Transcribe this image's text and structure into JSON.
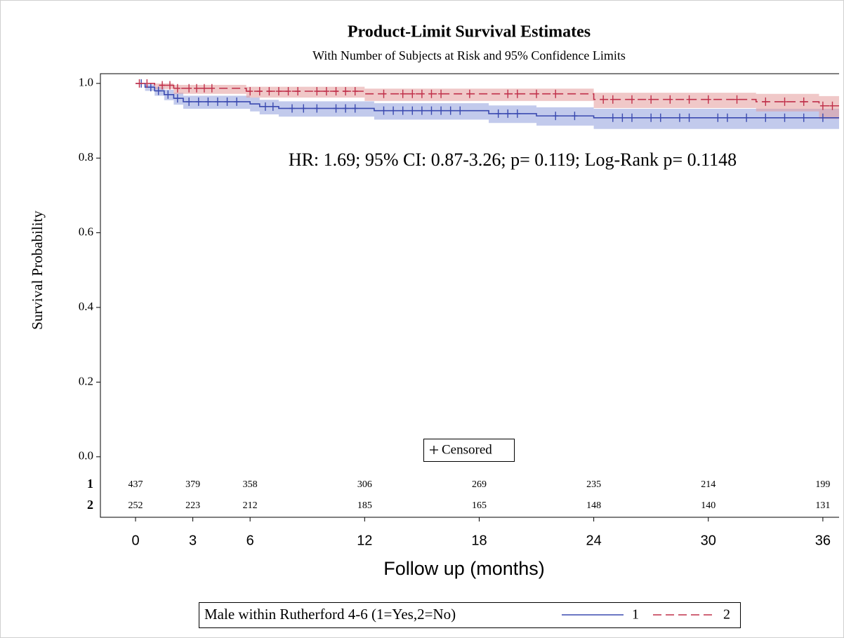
{
  "chart_data": {
    "type": "step",
    "title": "Product-Limit Survival Estimates",
    "subtitle": "With Number of Subjects at Risk and 95% Confidence Limits",
    "annotation": "HR: 1.69; 95% CI: 0.87-3.26; p= 0.119; Log-Rank p= 0.1148",
    "x_label": "Follow up (months)",
    "y_label": "Survival Probability",
    "xlim": [
      -1.84,
      36.85
    ],
    "ylim": [
      -0.162,
      1.026
    ],
    "xticks": [
      0,
      3,
      6,
      12,
      18,
      24,
      30,
      36
    ],
    "yticks": [
      {
        "value": 0,
        "label": "0.0"
      },
      0.2,
      0.4,
      0.6,
      0.8,
      {
        "value": 1,
        "label": "1.0"
      }
    ],
    "series": [
      {
        "name": "1",
        "color": "#3b4ab0",
        "band_color": "#8f9fdc",
        "dash": "solid",
        "x": [
          0,
          0.5,
          1,
          1.5,
          2,
          2.5,
          6,
          6.5,
          7.5,
          12.5,
          18.5,
          21,
          24
        ],
        "values": [
          1,
          0.99,
          0.98,
          0.97,
          0.96,
          0.951,
          0.945,
          0.938,
          0.933,
          0.927,
          0.919,
          0.913,
          0.908
        ],
        "lower": [
          1,
          0.98,
          0.967,
          0.955,
          0.943,
          0.932,
          0.925,
          0.917,
          0.911,
          0.903,
          0.894,
          0.887,
          0.878
        ],
        "upper": [
          1,
          0.997,
          0.99,
          0.983,
          0.975,
          0.967,
          0.962,
          0.956,
          0.952,
          0.947,
          0.941,
          0.936,
          0.932
        ],
        "censored": [
          0.3,
          0.8,
          1.2,
          1.7,
          2.2,
          2.8,
          3.3,
          3.8,
          4.3,
          4.8,
          5.3,
          6.8,
          7.2,
          8.2,
          8.8,
          9.5,
          10.5,
          11,
          11.5,
          13,
          13.5,
          14,
          14.5,
          15,
          15.5,
          16,
          16.5,
          17,
          19,
          19.5,
          20,
          22,
          23,
          25,
          25.5,
          26,
          27,
          27.5,
          28.5,
          29,
          30.5,
          31,
          32,
          33,
          34,
          35,
          36
        ]
      },
      {
        "name": "2",
        "color": "#c0304a",
        "band_color": "#e49a9a",
        "dash": "dashed",
        "x": [
          0,
          1,
          2,
          5.8,
          12,
          24,
          32.5,
          35.8
        ],
        "values": [
          1,
          0.995,
          0.987,
          0.979,
          0.972,
          0.957,
          0.951,
          0.94
        ],
        "lower": [
          1,
          0.985,
          0.972,
          0.962,
          0.953,
          0.934,
          0.925,
          0.905
        ],
        "upper": [
          1,
          1,
          0.996,
          0.991,
          0.986,
          0.975,
          0.972,
          0.966
        ],
        "censored": [
          0.2,
          0.6,
          1.4,
          1.8,
          2.2,
          2.8,
          3.2,
          3.6,
          4,
          6,
          6.5,
          7,
          7.5,
          8,
          8.5,
          9.5,
          10,
          10.5,
          11,
          11.5,
          13,
          14,
          14.5,
          15,
          15.5,
          16,
          17.5,
          19.5,
          20,
          21,
          22,
          24.5,
          25,
          26,
          27,
          28,
          29,
          30,
          31.5,
          33,
          34,
          35,
          36,
          36.5
        ]
      }
    ],
    "risk_table": {
      "x": [
        0,
        3,
        6,
        12,
        18,
        24,
        30,
        36
      ],
      "rows": [
        {
          "label": "1",
          "counts": [
            437,
            379,
            358,
            306,
            269,
            235,
            214,
            199
          ]
        },
        {
          "label": "2",
          "counts": [
            252,
            223,
            212,
            185,
            165,
            148,
            140,
            131
          ]
        }
      ]
    },
    "censored_legend": "Censored",
    "legend": {
      "title": "Male within Rutherford 4-6 (1=Yes,2=No)",
      "position": "bottom"
    }
  }
}
